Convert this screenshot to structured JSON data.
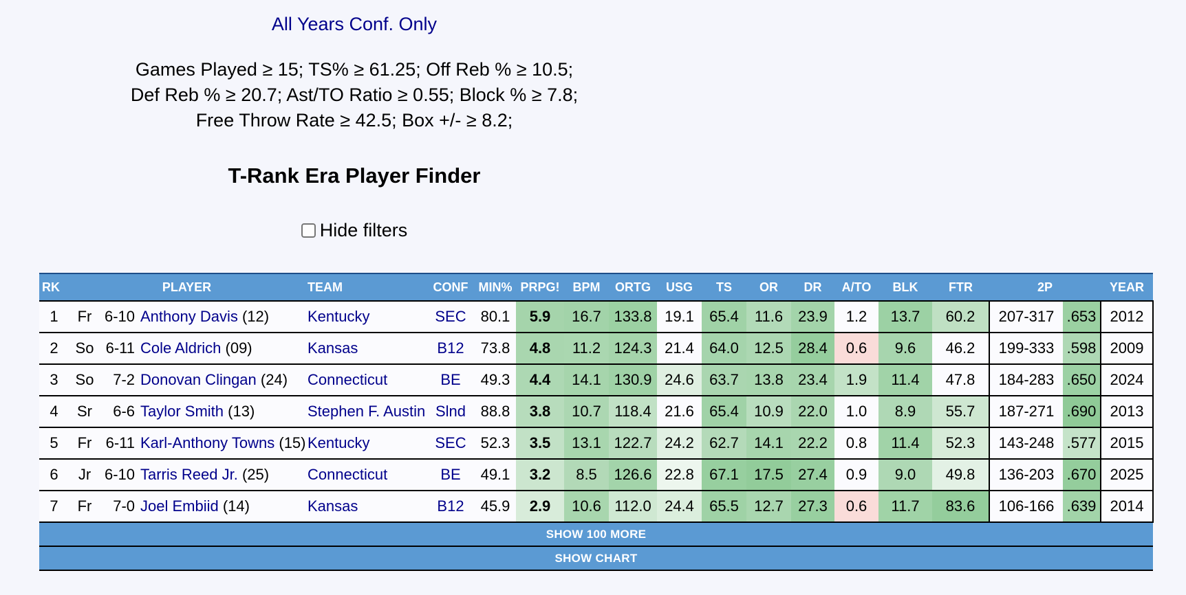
{
  "header": {
    "view_link": "All Years Conf. Only",
    "filters": [
      "Games Played ≥ 15; TS% ≥ 61.25; Off Reb % ≥ 10.5;",
      "Def Reb % ≥ 20.7; Ast/TO Ratio ≥ 0.55; Block % ≥ 7.8;",
      "Free Throw Rate ≥ 42.5; Box +/- ≥ 8.2;"
    ],
    "title": "T-Rank Era Player Finder",
    "hide_filters_label": "Hide filters",
    "hide_filters_checked": false
  },
  "table": {
    "columns": [
      "RK",
      "PLAYER",
      "TEAM",
      "CONF",
      "MIN%",
      "PRPG!",
      "BPM",
      "ORTG",
      "USG",
      "TS",
      "OR",
      "DR",
      "A/TO",
      "BLK",
      "FTR",
      "2P",
      "YEAR"
    ],
    "rows": [
      {
        "rk": "1",
        "cls": "Fr",
        "ht": "6-10",
        "name": "Anthony Davis",
        "num": "(12)",
        "team": "Kentucky",
        "conf": "SEC",
        "min": "80.1",
        "prpg": "5.9",
        "bpm": "16.7",
        "ortg": "133.8",
        "usg": "19.1",
        "ts": "65.4",
        "or": "11.6",
        "dr": "23.9",
        "ato": "1.2",
        "blk": "13.7",
        "ftr": "60.2",
        "fg": "207-317",
        "pct": ".653",
        "year": "2012",
        "bg": {
          "prpg": "#a5d4ab",
          "bpm": "#a2d3a9",
          "ortg": "#9cd1a3",
          "usg": null,
          "ts": "#a0d2a7",
          "or": "#b2dab8",
          "dr": "#a3d4aa",
          "ato": null,
          "blk": "#9cd1a4",
          "ftr": "#bfe0c3",
          "pct": "#9bd0a2"
        }
      },
      {
        "rk": "2",
        "cls": "So",
        "ht": "6-11",
        "name": "Cole Aldrich",
        "num": "(09)",
        "team": "Kansas",
        "conf": "B12",
        "min": "73.8",
        "prpg": "4.8",
        "bpm": "11.2",
        "ortg": "124.3",
        "usg": "21.4",
        "ts": "64.0",
        "or": "12.5",
        "dr": "28.4",
        "ato": "0.6",
        "blk": "9.6",
        "ftr": "46.2",
        "fg": "199-333",
        "pct": ".598",
        "year": "2009",
        "bg": {
          "prpg": "#a9d6af",
          "bpm": "#aad7b0",
          "ortg": "#a5d4ab",
          "usg": null,
          "ts": "#a5d4ac",
          "or": "#acd7b2",
          "dr": "#95cd9d",
          "ato": "#fadcd9",
          "blk": "#a7d5ae",
          "ftr": null,
          "pct": "#aed8b4"
        }
      },
      {
        "rk": "3",
        "cls": "So",
        "ht": "7-2",
        "name": "Donovan Clingan",
        "num": "(24)",
        "team": "Connecticut",
        "conf": "BE",
        "min": "49.3",
        "prpg": "4.4",
        "bpm": "14.1",
        "ortg": "130.9",
        "usg": "24.6",
        "ts": "63.7",
        "or": "13.8",
        "dr": "23.4",
        "ato": "1.9",
        "blk": "11.4",
        "ftr": "47.8",
        "fg": "184-283",
        "pct": ".650",
        "year": "2024",
        "bg": {
          "prpg": "#add8b3",
          "bpm": "#a6d5ac",
          "ortg": "#9fd2a6",
          "usg": "#dfefe1",
          "ts": "#aad6b0",
          "or": "#a8d6ae",
          "dr": "#a7d5ad",
          "ato": "#c3e2c7",
          "blk": "#a1d3a8",
          "ftr": null,
          "pct": "#9cd1a4"
        }
      },
      {
        "rk": "4",
        "cls": "Sr",
        "ht": "6-6",
        "name": "Taylor Smith",
        "num": "(13)",
        "team": "Stephen F. Austin",
        "conf": "Slnd",
        "min": "88.8",
        "prpg": "3.8",
        "bpm": "10.7",
        "ortg": "118.4",
        "usg": "21.6",
        "ts": "65.4",
        "or": "10.9",
        "dr": "22.0",
        "ato": "1.0",
        "blk": "8.9",
        "ftr": "55.7",
        "fg": "187-271",
        "pct": ".690",
        "year": "2013",
        "bg": {
          "prpg": "#b7dcbc",
          "bpm": "#acd7b2",
          "ortg": "#c1e1c5",
          "usg": null,
          "ts": "#a0d2a7",
          "or": "#b9ddbe",
          "dr": "#aad6b0",
          "ato": null,
          "blk": "#afd8b5",
          "ftr": "#cee7d1",
          "pct": "#8fca97"
        }
      },
      {
        "rk": "5",
        "cls": "Fr",
        "ht": "6-11",
        "name": "Karl-Anthony Towns",
        "num": "(15)",
        "team": "Kentucky",
        "conf": "SEC",
        "min": "52.3",
        "prpg": "3.5",
        "bpm": "13.1",
        "ortg": "122.7",
        "usg": "24.2",
        "ts": "62.7",
        "or": "14.1",
        "dr": "22.2",
        "ato": "0.8",
        "blk": "11.4",
        "ftr": "52.3",
        "fg": "143-248",
        "pct": ".577",
        "year": "2015",
        "bg": {
          "prpg": "#c2e1c6",
          "bpm": "#a8d6ae",
          "ortg": "#b8dcbd",
          "usg": "#e1f0e3",
          "ts": "#b4dab9",
          "or": "#a7d5ad",
          "dr": "#a9d6af",
          "ato": null,
          "blk": "#a1d3a8",
          "ftr": "#d7ebd9",
          "pct": "#c5e3c9"
        }
      },
      {
        "rk": "6",
        "cls": "Jr",
        "ht": "6-10",
        "name": "Tarris Reed Jr.",
        "num": "(25)",
        "team": "Connecticut",
        "conf": "BE",
        "min": "49.1",
        "prpg": "3.2",
        "bpm": "8.5",
        "ortg": "126.6",
        "usg": "22.8",
        "ts": "67.1",
        "or": "17.5",
        "dr": "27.4",
        "ato": "0.9",
        "blk": "9.0",
        "ftr": "49.8",
        "fg": "136-203",
        "pct": ".670",
        "year": "2025",
        "bg": {
          "prpg": "#cce6cf",
          "bpm": "#b2d9b7",
          "ortg": "#a3d4aa",
          "usg": "#edf6ee",
          "ts": "#97cf9f",
          "or": "#92cc9a",
          "dr": "#98cfa0",
          "ato": null,
          "blk": "#aed8b4",
          "ftr": "#e3f1e5",
          "pct": "#94cd9c"
        }
      },
      {
        "rk": "7",
        "cls": "Fr",
        "ht": "7-0",
        "name": "Joel Embiid",
        "num": "(14)",
        "team": "Kansas",
        "conf": "B12",
        "min": "45.9",
        "prpg": "2.9",
        "bpm": "10.6",
        "ortg": "112.0",
        "usg": "24.4",
        "ts": "65.5",
        "or": "12.7",
        "dr": "27.3",
        "ato": "0.6",
        "blk": "11.7",
        "ftr": "83.6",
        "fg": "106-166",
        "pct": ".639",
        "year": "2014",
        "bg": {
          "prpg": "#d8ecda",
          "bpm": "#a8d6ae",
          "ortg": "#cfe8d2",
          "usg": "#dbeedd",
          "ts": "#9fd2a6",
          "or": "#a9d6af",
          "dr": "#98cfa0",
          "ato": "#fadcd9",
          "blk": "#a0d3a7",
          "ftr": "#94cd9c",
          "pct": "#a2d4a9"
        }
      }
    ],
    "show_more": "SHOW 100 MORE",
    "show_chart": "SHOW CHART"
  },
  "colors": {
    "header_blue": "#5b9ad3",
    "link_navy": "#00008b",
    "bad_pink": "#fadcd9",
    "page_bg": "#f5f6fc"
  }
}
